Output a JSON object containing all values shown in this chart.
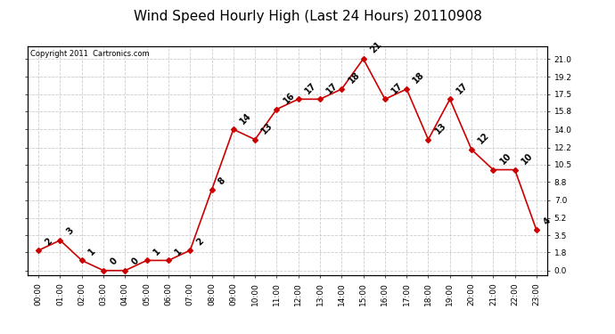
{
  "title": "Wind Speed Hourly High (Last 24 Hours) 20110908",
  "copyright": "Copyright 2011  Cartronics.com",
  "hours": [
    "00:00",
    "01:00",
    "02:00",
    "03:00",
    "04:00",
    "05:00",
    "06:00",
    "07:00",
    "08:00",
    "09:00",
    "10:00",
    "11:00",
    "12:00",
    "13:00",
    "14:00",
    "15:00",
    "16:00",
    "17:00",
    "18:00",
    "19:00",
    "20:00",
    "21:00",
    "22:00",
    "23:00"
  ],
  "values": [
    2,
    3,
    1,
    0,
    0,
    1,
    1,
    2,
    8,
    14,
    13,
    16,
    17,
    17,
    18,
    21,
    17,
    18,
    13,
    17,
    12,
    10,
    10,
    4
  ],
  "line_color": "#cc0000",
  "marker_color": "#cc0000",
  "bg_color": "#ffffff",
  "grid_color": "#cccccc",
  "title_fontsize": 11,
  "label_fontsize": 6.5,
  "annotation_fontsize": 7,
  "copyright_fontsize": 6,
  "ytick_values": [
    0.0,
    1.8,
    3.5,
    5.2,
    7.0,
    8.8,
    10.5,
    12.2,
    14.0,
    15.8,
    17.5,
    19.2,
    21.0
  ],
  "ylim_min": -0.5,
  "ylim_max": 22.2
}
